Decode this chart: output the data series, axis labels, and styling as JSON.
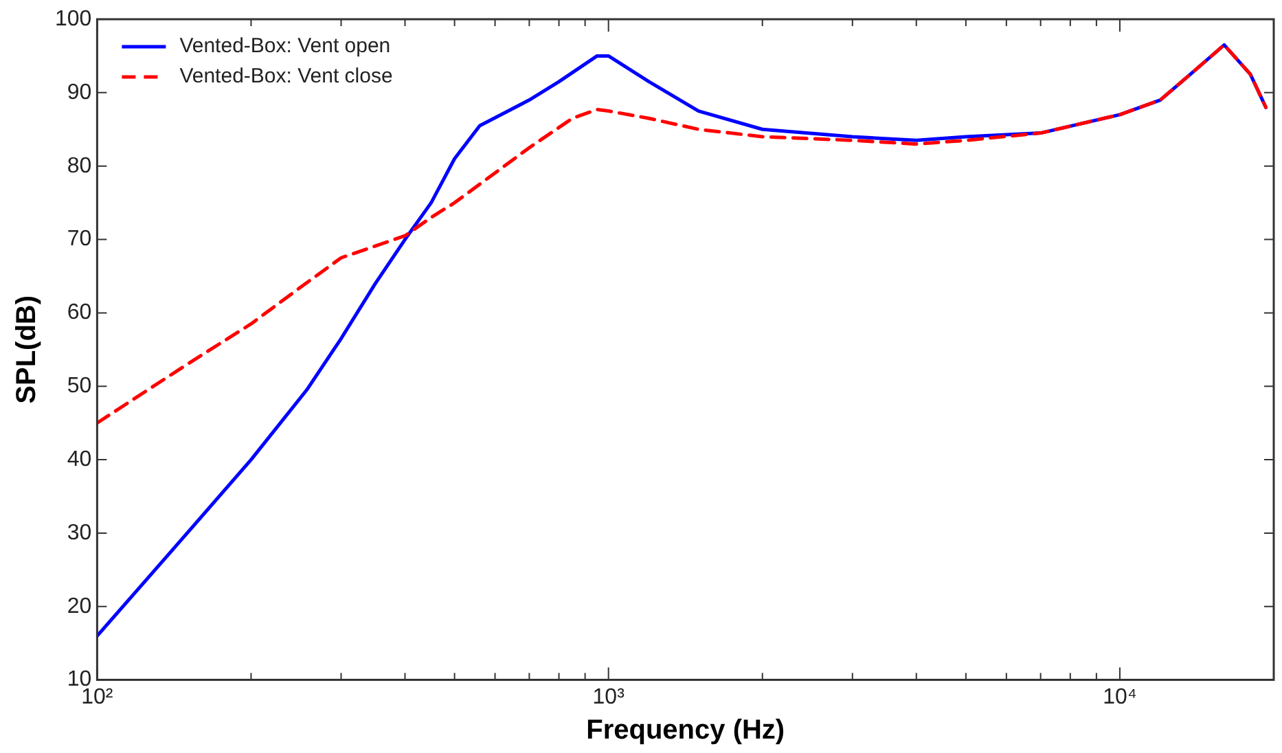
{
  "chart_data": {
    "type": "line",
    "xlabel": "Frequency (Hz)",
    "ylabel": "SPL(dB)",
    "log": "x",
    "grid": false,
    "legend": "top left",
    "marker": "none",
    "xlim": [
      100,
      20000
    ],
    "ylim": [
      10,
      100
    ],
    "xticks": [
      {
        "value": 100,
        "label": "10²"
      },
      {
        "value": 200,
        "label": null
      },
      {
        "value": 300,
        "label": null
      },
      {
        "value": 400,
        "label": null
      },
      {
        "value": 500,
        "label": null
      },
      {
        "value": 600,
        "label": null
      },
      {
        "value": 700,
        "label": null
      },
      {
        "value": 800,
        "label": null
      },
      {
        "value": 900,
        "label": null
      },
      {
        "value": 1000,
        "label": "10³"
      },
      {
        "value": 2000,
        "label": null
      },
      {
        "value": 3000,
        "label": null
      },
      {
        "value": 4000,
        "label": null
      },
      {
        "value": 5000,
        "label": null
      },
      {
        "value": 6000,
        "label": null
      },
      {
        "value": 7000,
        "label": null
      },
      {
        "value": 8000,
        "label": null
      },
      {
        "value": 9000,
        "label": null
      },
      {
        "value": 10000,
        "label": "10⁴"
      }
    ],
    "yticks": [
      10,
      20,
      30,
      40,
      50,
      60,
      70,
      80,
      90,
      100
    ],
    "series": [
      {
        "name": "Vented-Box: Vent open",
        "color": "#0000ff",
        "line_style": "solid",
        "x": [
          100,
          150,
          200,
          257,
          300,
          350,
          400,
          450,
          500,
          560,
          700,
          800,
          950,
          1000,
          1200,
          1500,
          2000,
          3000,
          4000,
          5000,
          7000,
          10000,
          12000,
          14000,
          16000,
          18000,
          19300
        ],
        "values": [
          16,
          30,
          40,
          49.5,
          56.5,
          64,
          70,
          75,
          81,
          85.5,
          89,
          91.5,
          95,
          95,
          91.5,
          87.5,
          85,
          84,
          83.5,
          84,
          84.5,
          87,
          89,
          93,
          96.5,
          92.5,
          88
        ]
      },
      {
        "name": "Vented-Box: Vent close",
        "color": "#ff0000",
        "line_style": "dashed",
        "x": [
          100,
          150,
          200,
          250,
          300,
          400,
          450,
          500,
          700,
          850,
          950,
          1000,
          1200,
          1500,
          2000,
          3000,
          4000,
          5000,
          7000,
          10000,
          12000,
          14000,
          16000,
          18000,
          19300
        ],
        "values": [
          45,
          53,
          58.5,
          63.5,
          67.5,
          70.5,
          73,
          75,
          82.5,
          86.5,
          87.7,
          87.5,
          86.5,
          85,
          84,
          83.5,
          83,
          83.5,
          84.5,
          87,
          89,
          93,
          96.5,
          92.5,
          88
        ]
      }
    ]
  }
}
